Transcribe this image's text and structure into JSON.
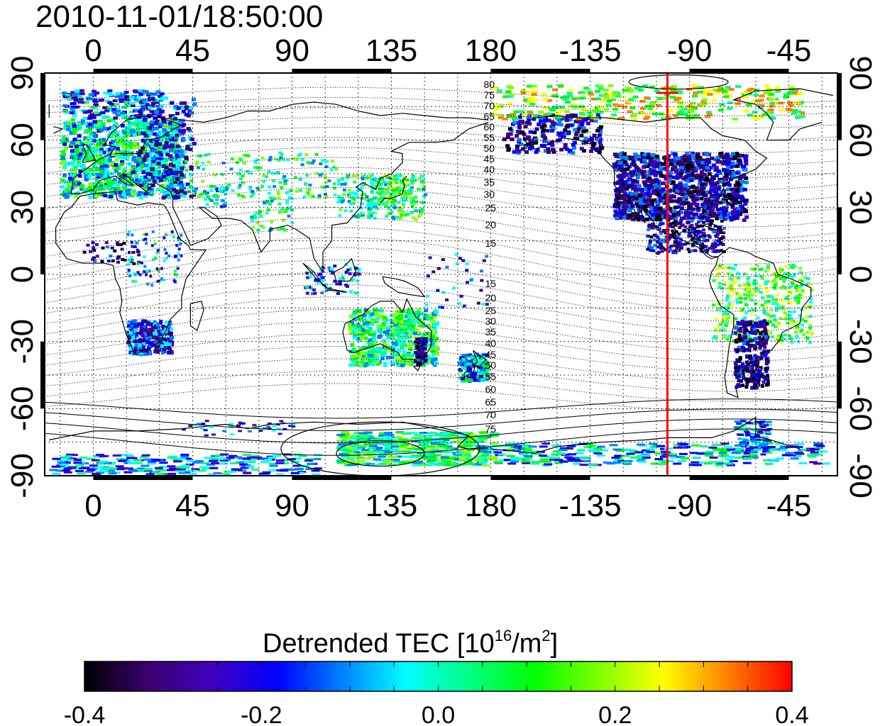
{
  "title": "2010-11-01/18:50:00",
  "map": {
    "lon_ticks": [
      "0",
      "45",
      "90",
      "135",
      "180",
      "-135",
      "-90",
      "-45"
    ],
    "lat_ticks": [
      "90",
      "60",
      "30",
      "0",
      "-30",
      "-60",
      "-90"
    ],
    "north_contour_labels": [
      "80",
      "75",
      "70",
      "65",
      "60",
      "55",
      "50",
      "45",
      "40",
      "35",
      "30",
      "25",
      "20",
      "15"
    ],
    "south_contour_labels": [
      "15",
      "20",
      "25",
      "30",
      "35",
      "40",
      "45",
      "50",
      "55",
      "60",
      "65",
      "70",
      "75"
    ],
    "terminator_longitude": -100,
    "terminator_color": "#ff0000"
  },
  "colorbar": {
    "title_text": "Detrended TEC  [10",
    "title_exp1": "16",
    "title_mid": "/m",
    "title_exp2": "2",
    "title_end": "]",
    "tick_labels": [
      "-0.4",
      "-0.2",
      "0.0",
      "0.2",
      "0.4"
    ],
    "range": [
      -0.4,
      0.4
    ],
    "colors": [
      "#000000",
      "#3a0070",
      "#4000c0",
      "#0000ff",
      "#0080ff",
      "#00ffff",
      "#00ff80",
      "#00ff00",
      "#80ff00",
      "#ffff00",
      "#ff8000",
      "#ff0000"
    ]
  }
}
